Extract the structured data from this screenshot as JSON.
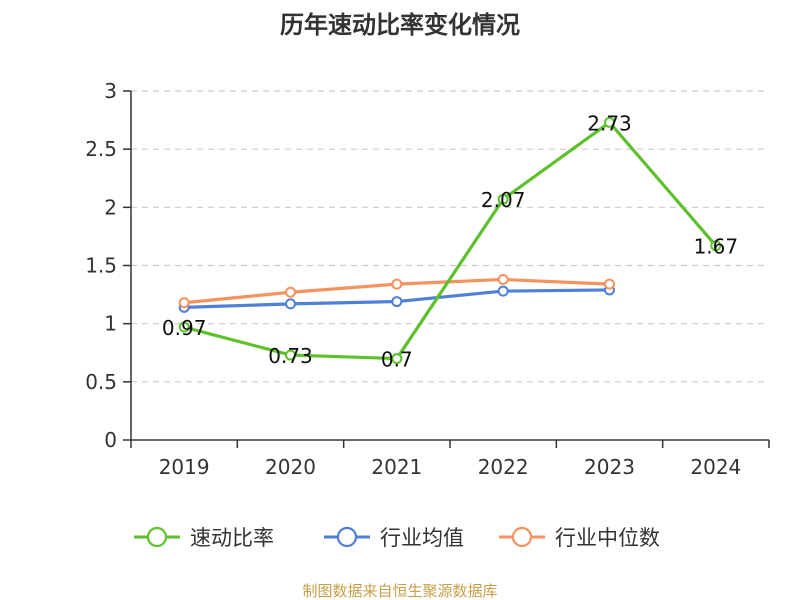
{
  "chart_data": {
    "type": "line",
    "title": "历年速动比率变化情况",
    "xlabel": "",
    "ylabel": "",
    "categories": [
      "2019",
      "2020",
      "2021",
      "2022",
      "2023",
      "2024"
    ],
    "ylim": [
      0,
      3
    ],
    "yticks": [
      "0",
      "0.5",
      "1",
      "1.5",
      "2",
      "2.5",
      "3"
    ],
    "grid": true,
    "legend_position": "bottom",
    "series": [
      {
        "name": "速动比率",
        "color": "#5cc12a",
        "values": [
          0.97,
          0.73,
          0.7,
          2.07,
          2.73,
          1.67
        ],
        "labels": [
          "0.97",
          "0.73",
          "0.7",
          "2.07",
          "2.73",
          "1.67"
        ]
      },
      {
        "name": "行业均值",
        "color": "#4f7fd9",
        "values": [
          1.14,
          1.17,
          1.19,
          1.28,
          1.29,
          null
        ]
      },
      {
        "name": "行业中位数",
        "color": "#f5925e",
        "values": [
          1.18,
          1.27,
          1.34,
          1.38,
          1.34,
          null
        ]
      }
    ]
  },
  "source_text": "制图数据来自恒生聚源数据库",
  "source_color": "#c8a04a"
}
